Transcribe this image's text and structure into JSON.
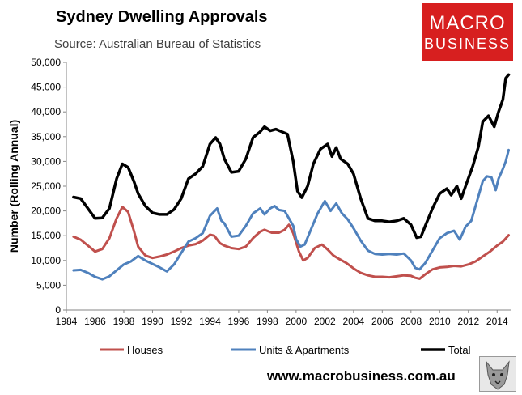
{
  "header": {
    "title": "Sydney Dwelling Approvals",
    "subtitle": "Source: Australian Bureau of Statistics"
  },
  "logo": {
    "line1": "MACRO",
    "line2": "BUSINESS",
    "color": "#d71f1f"
  },
  "footer": {
    "website": "www.macrobusiness.com.au",
    "emblem_icon": "wolf-icon"
  },
  "chart_data": {
    "type": "line",
    "title": "Sydney Dwelling Approvals",
    "ylabel": "Number (Rolling Annual)",
    "xlabel": "",
    "xlim": [
      1984,
      2015
    ],
    "ylim": [
      0,
      50000
    ],
    "x_ticks": [
      "1984",
      "1986",
      "1988",
      "1990",
      "1992",
      "1994",
      "1996",
      "1998",
      "2000",
      "2002",
      "2004",
      "2006",
      "2008",
      "2010",
      "2012",
      "2014"
    ],
    "y_ticks": [
      "0",
      "5,000",
      "10,000",
      "15,000",
      "20,000",
      "25,000",
      "30,000",
      "35,000",
      "40,000",
      "45,000",
      "50,000"
    ],
    "legend_position": "bottom",
    "grid": false,
    "series": [
      {
        "name": "Houses",
        "color": "#c0504d",
        "points": [
          [
            1984.5,
            14800
          ],
          [
            1985.0,
            14200
          ],
          [
            1985.5,
            13000
          ],
          [
            1986.0,
            11800
          ],
          [
            1986.5,
            12300
          ],
          [
            1987.0,
            14500
          ],
          [
            1987.5,
            18500
          ],
          [
            1987.9,
            20800
          ],
          [
            1988.3,
            19800
          ],
          [
            1988.7,
            16000
          ],
          [
            1989.0,
            12800
          ],
          [
            1989.5,
            11000
          ],
          [
            1990.0,
            10500
          ],
          [
            1990.5,
            10800
          ],
          [
            1991.0,
            11200
          ],
          [
            1991.5,
            11800
          ],
          [
            1992.0,
            12500
          ],
          [
            1992.5,
            13000
          ],
          [
            1993.0,
            13300
          ],
          [
            1993.5,
            14000
          ],
          [
            1994.0,
            15200
          ],
          [
            1994.3,
            15000
          ],
          [
            1994.7,
            13500
          ],
          [
            1995.0,
            13000
          ],
          [
            1995.5,
            12500
          ],
          [
            1996.0,
            12300
          ],
          [
            1996.5,
            12800
          ],
          [
            1997.0,
            14500
          ],
          [
            1997.5,
            15800
          ],
          [
            1997.8,
            16200
          ],
          [
            1998.3,
            15600
          ],
          [
            1998.8,
            15600
          ],
          [
            1999.2,
            16200
          ],
          [
            1999.5,
            17200
          ],
          [
            1999.8,
            15500
          ],
          [
            2000.2,
            11800
          ],
          [
            2000.5,
            10000
          ],
          [
            2000.8,
            10500
          ],
          [
            2001.3,
            12500
          ],
          [
            2001.8,
            13200
          ],
          [
            2002.2,
            12200
          ],
          [
            2002.6,
            11000
          ],
          [
            2003.0,
            10300
          ],
          [
            2003.5,
            9500
          ],
          [
            2004.0,
            8400
          ],
          [
            2004.5,
            7500
          ],
          [
            2005.0,
            7000
          ],
          [
            2005.5,
            6700
          ],
          [
            2006.0,
            6700
          ],
          [
            2006.5,
            6600
          ],
          [
            2007.0,
            6800
          ],
          [
            2007.5,
            7000
          ],
          [
            2008.0,
            6900
          ],
          [
            2008.3,
            6500
          ],
          [
            2008.6,
            6300
          ],
          [
            2009.0,
            7200
          ],
          [
            2009.5,
            8200
          ],
          [
            2010.0,
            8600
          ],
          [
            2010.5,
            8700
          ],
          [
            2011.0,
            8900
          ],
          [
            2011.5,
            8800
          ],
          [
            2012.0,
            9200
          ],
          [
            2012.5,
            9800
          ],
          [
            2013.0,
            10800
          ],
          [
            2013.5,
            11800
          ],
          [
            2014.0,
            13000
          ],
          [
            2014.4,
            13800
          ],
          [
            2014.8,
            15100
          ]
        ]
      },
      {
        "name": "Units & Apartments",
        "color": "#4f81bd",
        "points": [
          [
            1984.5,
            8000
          ],
          [
            1985.0,
            8100
          ],
          [
            1985.5,
            7500
          ],
          [
            1986.0,
            6700
          ],
          [
            1986.5,
            6200
          ],
          [
            1987.0,
            6800
          ],
          [
            1987.5,
            8000
          ],
          [
            1988.0,
            9200
          ],
          [
            1988.5,
            9800
          ],
          [
            1989.0,
            10900
          ],
          [
            1989.5,
            10000
          ],
          [
            1990.0,
            9300
          ],
          [
            1990.5,
            8600
          ],
          [
            1991.0,
            7800
          ],
          [
            1991.5,
            9200
          ],
          [
            1992.0,
            11500
          ],
          [
            1992.5,
            13800
          ],
          [
            1993.0,
            14500
          ],
          [
            1993.5,
            15500
          ],
          [
            1994.0,
            19000
          ],
          [
            1994.5,
            20500
          ],
          [
            1994.8,
            18000
          ],
          [
            1995.0,
            17500
          ],
          [
            1995.5,
            14800
          ],
          [
            1996.0,
            15000
          ],
          [
            1996.5,
            17000
          ],
          [
            1997.0,
            19500
          ],
          [
            1997.5,
            20500
          ],
          [
            1997.8,
            19300
          ],
          [
            1998.2,
            20500
          ],
          [
            1998.5,
            21000
          ],
          [
            1998.8,
            20200
          ],
          [
            1999.2,
            20000
          ],
          [
            1999.5,
            18500
          ],
          [
            1999.8,
            17000
          ],
          [
            2000.0,
            14300
          ],
          [
            2000.3,
            12800
          ],
          [
            2000.6,
            13200
          ],
          [
            2001.0,
            16000
          ],
          [
            2001.5,
            19500
          ],
          [
            2002.0,
            22000
          ],
          [
            2002.4,
            20000
          ],
          [
            2002.8,
            21500
          ],
          [
            2003.2,
            19500
          ],
          [
            2003.6,
            18300
          ],
          [
            2004.0,
            16500
          ],
          [
            2004.5,
            14000
          ],
          [
            2005.0,
            12000
          ],
          [
            2005.5,
            11300
          ],
          [
            2006.0,
            11200
          ],
          [
            2006.5,
            11300
          ],
          [
            2007.0,
            11200
          ],
          [
            2007.5,
            11400
          ],
          [
            2008.0,
            10000
          ],
          [
            2008.3,
            8500
          ],
          [
            2008.6,
            8200
          ],
          [
            2009.0,
            9500
          ],
          [
            2009.5,
            12000
          ],
          [
            2010.0,
            14500
          ],
          [
            2010.5,
            15500
          ],
          [
            2011.0,
            16000
          ],
          [
            2011.4,
            14200
          ],
          [
            2011.8,
            16800
          ],
          [
            2012.2,
            18000
          ],
          [
            2012.6,
            22000
          ],
          [
            2013.0,
            26000
          ],
          [
            2013.3,
            27000
          ],
          [
            2013.6,
            26800
          ],
          [
            2013.9,
            24200
          ],
          [
            2014.1,
            26500
          ],
          [
            2014.4,
            28500
          ],
          [
            2014.6,
            30000
          ],
          [
            2014.8,
            32300
          ]
        ]
      },
      {
        "name": "Total",
        "color": "#000000",
        "points": [
          [
            1984.5,
            22800
          ],
          [
            1985.0,
            22500
          ],
          [
            1985.5,
            20500
          ],
          [
            1986.0,
            18500
          ],
          [
            1986.5,
            18600
          ],
          [
            1987.0,
            20500
          ],
          [
            1987.5,
            26500
          ],
          [
            1987.9,
            29500
          ],
          [
            1988.3,
            28800
          ],
          [
            1988.7,
            26000
          ],
          [
            1989.0,
            23500
          ],
          [
            1989.5,
            21000
          ],
          [
            1990.0,
            19600
          ],
          [
            1990.5,
            19300
          ],
          [
            1991.0,
            19300
          ],
          [
            1991.5,
            20300
          ],
          [
            1992.0,
            22500
          ],
          [
            1992.5,
            26500
          ],
          [
            1993.0,
            27500
          ],
          [
            1993.5,
            29000
          ],
          [
            1994.0,
            33500
          ],
          [
            1994.4,
            34800
          ],
          [
            1994.7,
            33500
          ],
          [
            1995.0,
            30500
          ],
          [
            1995.5,
            27800
          ],
          [
            1996.0,
            28000
          ],
          [
            1996.5,
            30500
          ],
          [
            1997.0,
            34800
          ],
          [
            1997.5,
            36000
          ],
          [
            1997.8,
            37000
          ],
          [
            1998.2,
            36200
          ],
          [
            1998.6,
            36500
          ],
          [
            1999.0,
            36000
          ],
          [
            1999.4,
            35500
          ],
          [
            1999.8,
            30000
          ],
          [
            2000.1,
            24000
          ],
          [
            2000.4,
            22700
          ],
          [
            2000.8,
            25000
          ],
          [
            2001.2,
            29500
          ],
          [
            2001.7,
            32500
          ],
          [
            2002.2,
            33500
          ],
          [
            2002.5,
            31000
          ],
          [
            2002.8,
            32800
          ],
          [
            2003.1,
            30500
          ],
          [
            2003.6,
            29500
          ],
          [
            2004.0,
            27500
          ],
          [
            2004.5,
            22500
          ],
          [
            2005.0,
            18500
          ],
          [
            2005.5,
            18000
          ],
          [
            2006.0,
            18000
          ],
          [
            2006.5,
            17800
          ],
          [
            2007.0,
            18000
          ],
          [
            2007.5,
            18500
          ],
          [
            2008.0,
            17200
          ],
          [
            2008.4,
            14600
          ],
          [
            2008.7,
            14800
          ],
          [
            2009.0,
            17000
          ],
          [
            2009.5,
            20500
          ],
          [
            2010.0,
            23500
          ],
          [
            2010.5,
            24500
          ],
          [
            2010.8,
            23200
          ],
          [
            2011.2,
            25000
          ],
          [
            2011.5,
            22500
          ],
          [
            2011.9,
            25800
          ],
          [
            2012.3,
            29000
          ],
          [
            2012.7,
            33000
          ],
          [
            2013.0,
            38000
          ],
          [
            2013.4,
            39200
          ],
          [
            2013.8,
            37000
          ],
          [
            2014.1,
            40000
          ],
          [
            2014.4,
            42500
          ],
          [
            2014.6,
            46800
          ],
          [
            2014.8,
            47500
          ]
        ]
      }
    ]
  }
}
